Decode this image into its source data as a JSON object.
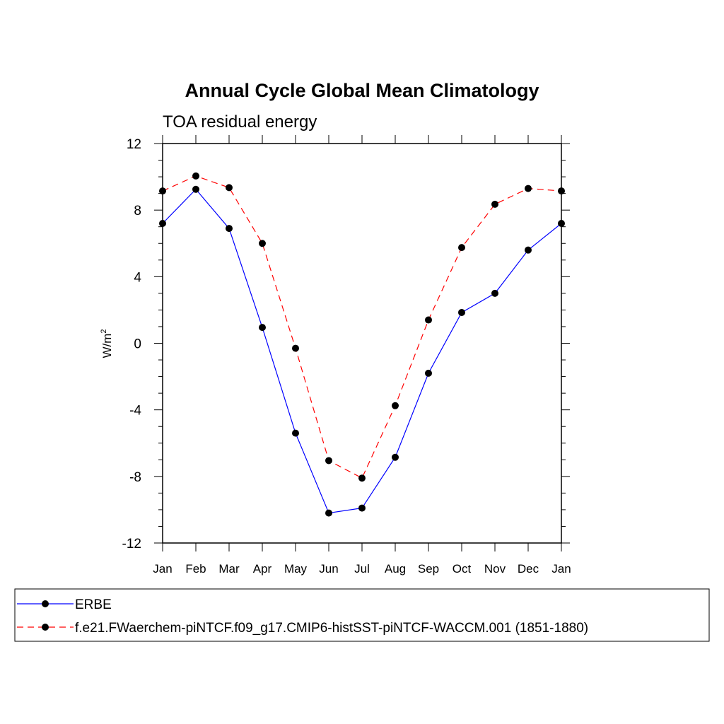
{
  "chart_data": {
    "type": "line",
    "title": "Annual Cycle Global Mean Climatology",
    "subtitle": "TOA residual energy",
    "ylabel": "W/m",
    "ylabel_superscript": "2",
    "xlabel": "",
    "categories": [
      "Jan",
      "Feb",
      "Mar",
      "Apr",
      "May",
      "Jun",
      "Jul",
      "Aug",
      "Sep",
      "Oct",
      "Nov",
      "Dec",
      "Jan"
    ],
    "ylim": [
      -12,
      12
    ],
    "yticks": [
      "12",
      "8",
      "4",
      "0",
      "-4",
      "-8",
      "-12"
    ],
    "ytick_values": [
      12,
      8,
      4,
      0,
      -4,
      -8,
      -12
    ],
    "grid": false,
    "legend_position": "bottom",
    "series": [
      {
        "name": "ERBE",
        "color": "#0000ff",
        "dash": "solid",
        "values": [
          7.2,
          9.25,
          6.9,
          0.95,
          -5.4,
          -10.2,
          -9.9,
          -6.85,
          -1.8,
          1.85,
          3.0,
          5.6,
          7.2
        ]
      },
      {
        "name": "f.e21.FWaerchem-piNTCF.f09_g17.CMIP6-histSST-piNTCF-WACCM.001 (1851-1880)",
        "color": "#ff0000",
        "dash": "dashed",
        "values": [
          9.15,
          10.05,
          9.35,
          6.0,
          -0.3,
          -7.05,
          -8.1,
          -3.75,
          1.4,
          5.75,
          8.35,
          9.3,
          9.15
        ]
      }
    ]
  }
}
